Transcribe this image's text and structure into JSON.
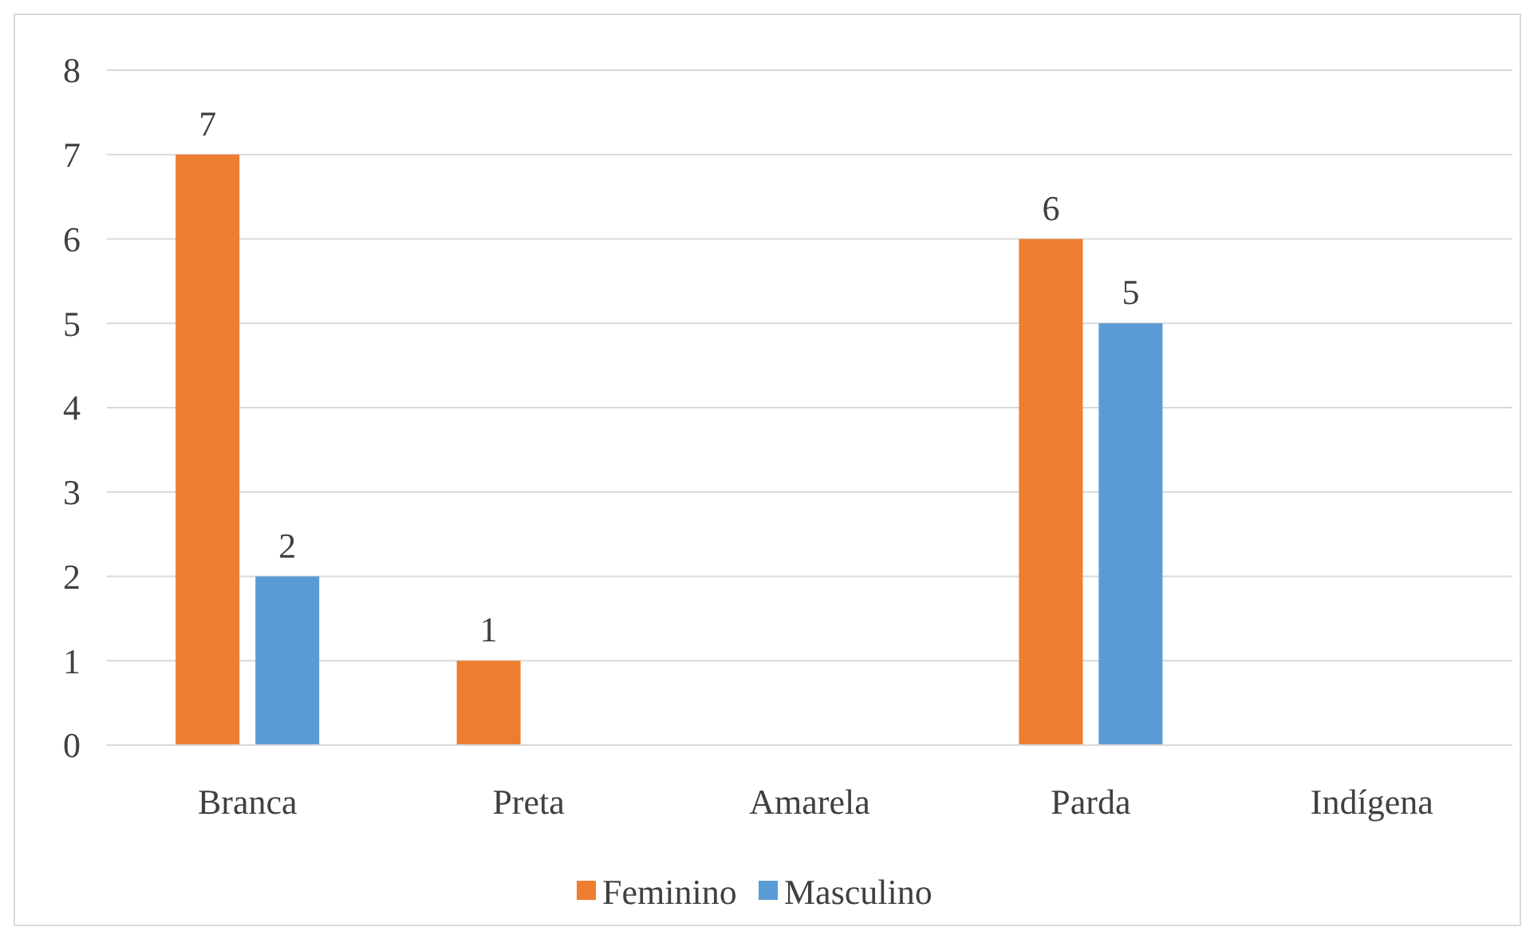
{
  "chart_data": {
    "type": "bar",
    "categories": [
      "Branca",
      "Preta",
      "Amarela",
      "Parda",
      "Indígena"
    ],
    "series": [
      {
        "name": "Feminino",
        "color": "#ed7d31",
        "values": [
          7,
          1,
          0,
          6,
          0
        ],
        "value_labels": [
          "7",
          "1",
          null,
          "6",
          null
        ]
      },
      {
        "name": "Masculino",
        "color": "#5b9bd5",
        "values": [
          2,
          0,
          0,
          5,
          0
        ],
        "value_labels": [
          "2",
          null,
          null,
          "5",
          null
        ]
      }
    ],
    "ylim": [
      0,
      8
    ],
    "yticks": [
      0,
      1,
      2,
      3,
      4,
      5,
      6,
      7,
      8
    ],
    "grid": "y",
    "legend": "bottom"
  }
}
